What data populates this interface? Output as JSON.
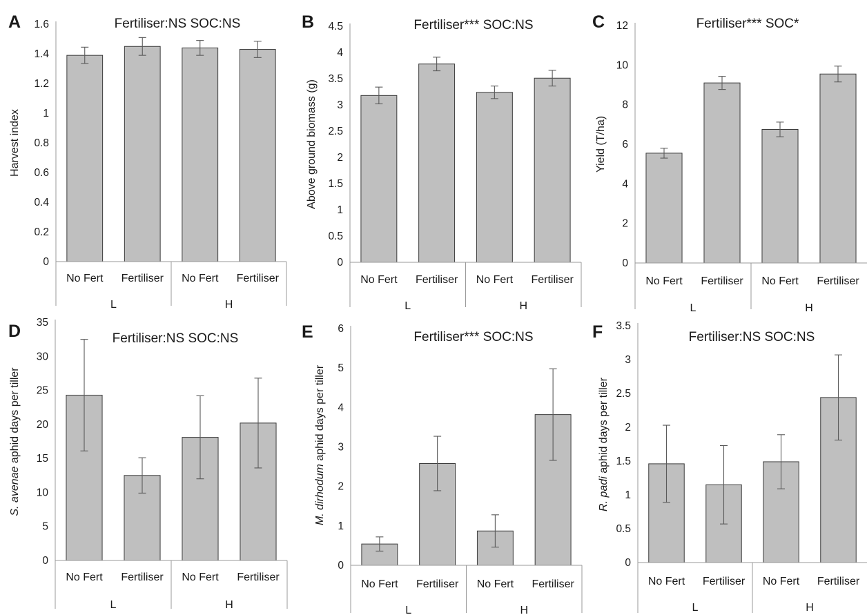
{
  "chart_data": [
    {
      "panel": "A",
      "type": "bar",
      "title": "Fertiliser:NS SOC:NS",
      "ylabel": "Harvest index",
      "ylabel_italic": "",
      "ylim": [
        0,
        1.6
      ],
      "yticks": [
        0,
        0.2,
        0.4,
        0.6,
        0.8,
        1,
        1.2,
        1.4,
        1.6
      ],
      "categories": [
        "No Fert",
        "Fertiliser",
        "No Fert",
        "Fertiliser"
      ],
      "groups": [
        "L",
        "H"
      ],
      "values": [
        1.39,
        1.45,
        1.44,
        1.43
      ],
      "errors": [
        0.055,
        0.06,
        0.05,
        0.055
      ]
    },
    {
      "panel": "B",
      "type": "bar",
      "title": "Fertiliser*** SOC:NS",
      "ylabel": "Above ground biomass (g)",
      "ylabel_italic": "",
      "ylim": [
        0,
        4.5
      ],
      "yticks": [
        0,
        0.5,
        1,
        1.5,
        2,
        2.5,
        3,
        3.5,
        4,
        4.5
      ],
      "categories": [
        "No Fert",
        "Fertiliser",
        "No Fert",
        "Fertiliser"
      ],
      "groups": [
        "L",
        "H"
      ],
      "values": [
        3.18,
        3.78,
        3.24,
        3.51
      ],
      "errors": [
        0.16,
        0.13,
        0.12,
        0.15
      ]
    },
    {
      "panel": "C",
      "type": "bar",
      "title": "Fertiliser*** SOC*",
      "ylabel": "Yield (T/ha)",
      "ylabel_italic": "",
      "ylim": [
        0,
        12
      ],
      "yticks": [
        0,
        2,
        4,
        6,
        8,
        10,
        12
      ],
      "categories": [
        "No Fert",
        "Fertiliser",
        "No Fert",
        "Fertiliser"
      ],
      "groups": [
        "L",
        "H"
      ],
      "values": [
        5.55,
        9.1,
        6.75,
        9.55
      ],
      "errors": [
        0.25,
        0.33,
        0.37,
        0.4
      ]
    },
    {
      "panel": "D",
      "type": "bar",
      "title": "Fertiliser:NS SOC:NS",
      "ylabel": " aphid days per tiller",
      "ylabel_italic": "S. avenae",
      "ylim": [
        0,
        35
      ],
      "yticks": [
        0,
        5,
        10,
        15,
        20,
        25,
        30,
        35
      ],
      "categories": [
        "No Fert",
        "Fertiliser",
        "No Fert",
        "Fertiliser"
      ],
      "groups": [
        "L",
        "H"
      ],
      "values": [
        24.3,
        12.5,
        18.1,
        20.2
      ],
      "errors": [
        8.2,
        2.6,
        6.1,
        6.6
      ]
    },
    {
      "panel": "E",
      "type": "bar",
      "title": "Fertiliser*** SOC:NS",
      "ylabel": " aphid days per tiller",
      "ylabel_italic": "M. dirhodum",
      "ylim": [
        0,
        6
      ],
      "yticks": [
        0,
        1,
        2,
        3,
        4,
        5,
        6
      ],
      "categories": [
        "No Fert",
        "Fertiliser",
        "No Fert",
        "Fertiliser"
      ],
      "groups": [
        "L",
        "H"
      ],
      "values": [
        0.54,
        2.58,
        0.87,
        3.82
      ],
      "errors": [
        0.18,
        0.69,
        0.41,
        1.16
      ]
    },
    {
      "panel": "F",
      "type": "bar",
      "title": "Fertiliser:NS SOC:NS",
      "ylabel": " aphid days per tiller",
      "ylabel_italic": "R. padi",
      "ylim": [
        0,
        3.5
      ],
      "yticks": [
        0,
        0.5,
        1,
        1.5,
        2,
        2.5,
        3,
        3.5
      ],
      "categories": [
        "No Fert",
        "Fertiliser",
        "No Fert",
        "Fertiliser"
      ],
      "groups": [
        "L",
        "H"
      ],
      "values": [
        1.46,
        1.15,
        1.49,
        2.44
      ],
      "errors": [
        0.57,
        0.58,
        0.4,
        0.63
      ]
    }
  ]
}
